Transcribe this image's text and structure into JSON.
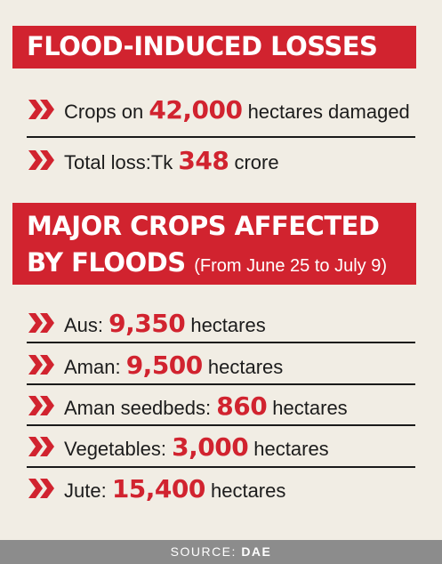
{
  "section1": {
    "title": "FLOOD-INDUCED LOSSES",
    "items": [
      {
        "pre": "Crops on ",
        "num": "42,000",
        "post": " hectares damaged"
      },
      {
        "pre": "Total loss:Tk ",
        "num": "348",
        "post": " crore"
      }
    ]
  },
  "section2": {
    "title_line1": "MAJOR CROPS AFFECTED",
    "title_line2": "BY FLOODS",
    "subtitle": "(From June 25 to July 9)",
    "items": [
      {
        "pre": "Aus: ",
        "num": "9,350",
        "post": " hectares"
      },
      {
        "pre": "Aman: ",
        "num": "9,500",
        "post": " hectares"
      },
      {
        "pre": "Aman seedbeds: ",
        "num": "860",
        "post": " hectares"
      },
      {
        "pre": "Vegetables: ",
        "num": "3,000",
        "post": " hectares"
      },
      {
        "pre": "Jute: ",
        "num": "15,400",
        "post": " hectares"
      }
    ]
  },
  "footer": {
    "label": "SOURCE: ",
    "source": "DAE"
  },
  "colors": {
    "accent": "#d1232f",
    "background": "#f1ede4",
    "footer_bg": "#8c8c8c"
  },
  "icons": {
    "bullet": "double-chevron-right-icon"
  }
}
